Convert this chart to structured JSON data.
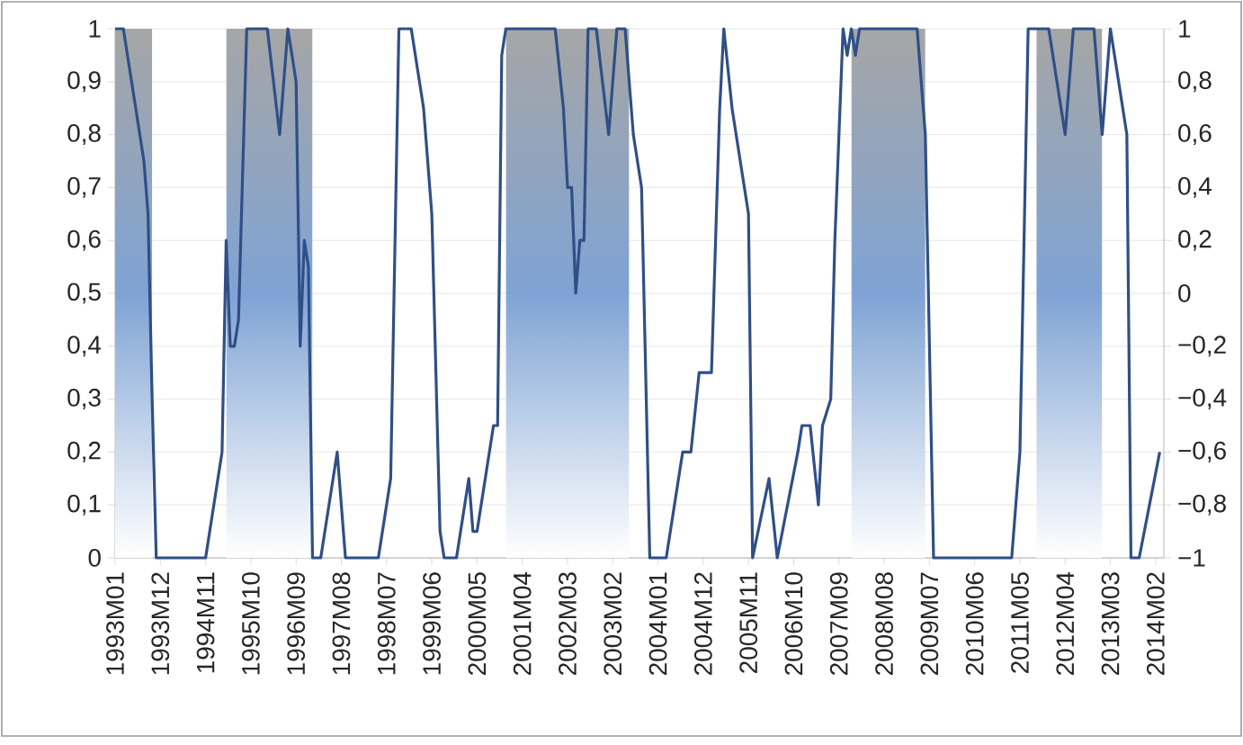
{
  "chart_data": {
    "type": "line",
    "x": [
      "1993-01",
      "1993-03",
      "1993-05",
      "1993-08",
      "1993-09",
      "1993-10",
      "1993-11",
      "1994-11",
      "1995-03",
      "1995-04",
      "1995-05",
      "1995-06",
      "1995-07",
      "1995-09",
      "1996-02",
      "1996-05",
      "1996-07",
      "1996-09",
      "1996-10",
      "1996-11",
      "1996-12",
      "1997-01",
      "1997-03",
      "1997-07",
      "1997-09",
      "1998-05",
      "1998-08",
      "1998-10",
      "1999-01",
      "1999-04",
      "1999-06",
      "1999-08",
      "1999-09",
      "1999-12",
      "2000-03",
      "2000-04",
      "2000-05",
      "2000-09",
      "2000-10",
      "2000-11",
      "2000-12",
      "2001-12",
      "2002-02",
      "2002-03",
      "2002-04",
      "2002-05",
      "2002-06",
      "2002-07",
      "2002-08",
      "2002-10",
      "2003-01",
      "2003-03",
      "2003-05",
      "2003-07",
      "2003-09",
      "2003-11",
      "2004-03",
      "2004-07",
      "2004-09",
      "2004-11",
      "2005-02",
      "2005-04",
      "2005-05",
      "2005-07",
      "2005-09",
      "2005-11",
      "2005-12",
      "2006-04",
      "2006-06",
      "2006-11",
      "2006-12",
      "2007-02",
      "2007-04",
      "2007-05",
      "2007-07",
      "2007-08",
      "2007-10",
      "2007-11",
      "2007-12",
      "2008-01",
      "2008-02",
      "2009-04",
      "2009-06",
      "2009-08",
      "2011-03",
      "2011-05",
      "2011-07",
      "2011-12",
      "2012-04",
      "2012-06",
      "2012-11",
      "2013-01",
      "2013-03",
      "2013-05",
      "2013-07",
      "2013-08",
      "2013-10",
      "2014-03"
    ],
    "series": [
      {
        "color": "#2f4f86",
        "values": [
          1,
          1,
          0.9,
          0.75,
          0.65,
          0.3,
          0,
          0,
          0.2,
          0.6,
          0.4,
          0.4,
          0.45,
          1,
          1,
          0.8,
          1,
          0.9,
          0.4,
          0.6,
          0.55,
          0,
          0,
          0.2,
          0,
          0,
          0.15,
          1,
          1,
          0.85,
          0.65,
          0.05,
          0,
          0,
          0.15,
          0.05,
          0.05,
          0.25,
          0.25,
          0.95,
          1,
          1,
          0.85,
          0.7,
          0.7,
          0.5,
          0.6,
          0.6,
          1,
          1,
          0.8,
          1,
          1,
          0.8,
          0.7,
          0,
          0,
          0.2,
          0.2,
          0.35,
          0.35,
          0.85,
          1,
          0.85,
          0.75,
          0.65,
          0,
          0.15,
          0,
          0.2,
          0.25,
          0.25,
          0.1,
          0.25,
          0.3,
          0.6,
          1,
          0.95,
          1,
          0.95,
          1,
          1,
          0.8,
          0,
          0,
          0.2,
          1,
          1,
          0.8,
          1,
          1,
          0.8,
          1,
          0.9,
          0.8,
          0,
          0,
          0.2
        ]
      }
    ],
    "xlim": [
      "1993-01",
      "2014-04"
    ],
    "xticks": [
      {
        "value": "1993-01",
        "label": "1993M01"
      },
      {
        "value": "1993-12",
        "label": "1993M12"
      },
      {
        "value": "1994-11",
        "label": "1994M11"
      },
      {
        "value": "1995-10",
        "label": "1995M10"
      },
      {
        "value": "1996-09",
        "label": "1996M09"
      },
      {
        "value": "1997-08",
        "label": "1997M08"
      },
      {
        "value": "1998-07",
        "label": "1998M07"
      },
      {
        "value": "1999-06",
        "label": "1999M06"
      },
      {
        "value": "2000-05",
        "label": "2000M05"
      },
      {
        "value": "2001-04",
        "label": "2001M04"
      },
      {
        "value": "2002-03",
        "label": "2002M03"
      },
      {
        "value": "2003-02",
        "label": "2003M02"
      },
      {
        "value": "2004-01",
        "label": "2004M01"
      },
      {
        "value": "2004-12",
        "label": "2004M12"
      },
      {
        "value": "2005-11",
        "label": "2005M11"
      },
      {
        "value": "2006-10",
        "label": "2006M10"
      },
      {
        "value": "2007-09",
        "label": "2007M09"
      },
      {
        "value": "2008-08",
        "label": "2008M08"
      },
      {
        "value": "2009-07",
        "label": "2009M07"
      },
      {
        "value": "2010-06",
        "label": "2010M06"
      },
      {
        "value": "2011-05",
        "label": "2011M05"
      },
      {
        "value": "2012-04",
        "label": "2012M04"
      },
      {
        "value": "2013-03",
        "label": "2013M03"
      },
      {
        "value": "2014-02",
        "label": "2014M02"
      }
    ],
    "ylim": [
      0,
      1
    ],
    "yticks": [
      0,
      {
        "value": 0.1,
        "label": "0,1"
      },
      {
        "value": 0.2,
        "label": "0,2"
      },
      {
        "value": 0.3,
        "label": "0,3"
      },
      {
        "value": 0.4,
        "label": "0,4"
      },
      {
        "value": 0.5,
        "label": "0,5"
      },
      {
        "value": 0.6,
        "label": "0,6"
      },
      {
        "value": 0.7,
        "label": "0,7"
      },
      {
        "value": 0.8,
        "label": "0,8"
      },
      {
        "value": 0.9,
        "label": "0,9"
      },
      1
    ],
    "y2lim": [
      -1,
      1
    ],
    "y2ticks": [
      {
        "value": -1,
        "label": "−1"
      },
      {
        "value": -0.8,
        "label": "−0,8"
      },
      {
        "value": -0.6,
        "label": "−0,6"
      },
      {
        "value": -0.4,
        "label": "−0,4"
      },
      {
        "value": -0.2,
        "label": "−0,2"
      },
      0,
      {
        "value": 0.2,
        "label": "0,2"
      },
      {
        "value": 0.4,
        "label": "0,4"
      },
      {
        "value": 0.6,
        "label": "0,6"
      },
      {
        "value": 0.8,
        "label": "0,8"
      },
      1
    ],
    "bands": [
      {
        "axis": "x",
        "from": "1993-01",
        "to": "1993-10",
        "color": "#7fa3d4"
      },
      {
        "axis": "x",
        "from": "1995-04",
        "to": "1997-01",
        "color": "#7fa3d4"
      },
      {
        "axis": "x",
        "from": "2000-12",
        "to": "2003-06",
        "color": "#7fa3d4"
      },
      {
        "axis": "x",
        "from": "2007-12",
        "to": "2009-06",
        "color": "#7fa3d4"
      },
      {
        "axis": "x",
        "from": "2011-09",
        "to": "2013-01",
        "color": "#7fa3d4"
      }
    ],
    "grid": "y"
  }
}
